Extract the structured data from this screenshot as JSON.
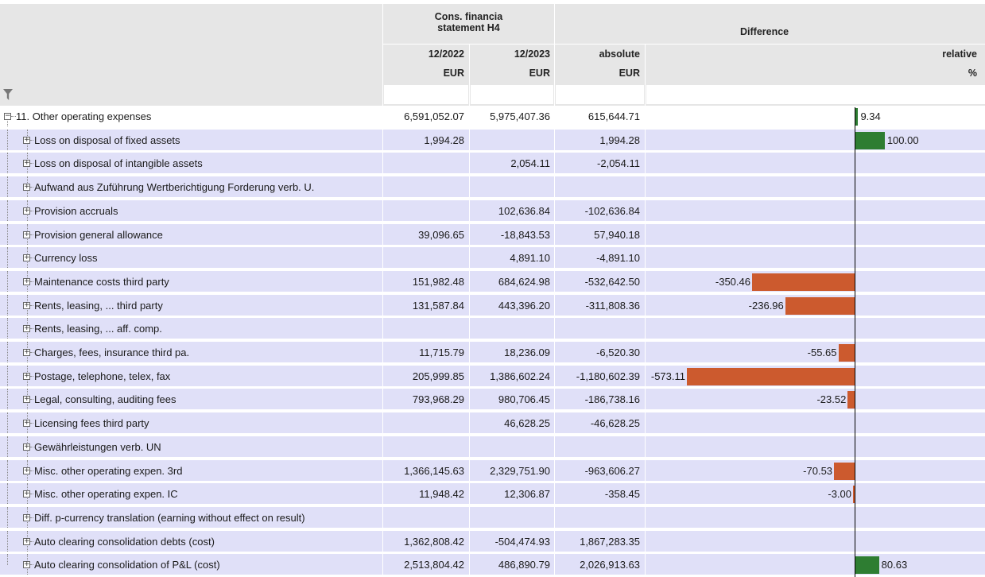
{
  "header": {
    "group_title": "Cons. financia statement H4",
    "group_title_line1": "Cons. financia",
    "group_title_line2": "statement H4",
    "diff_title": "Difference",
    "col_2022": "12/2022",
    "col_2023": "12/2023",
    "col_absolute": "absolute",
    "col_relative": "relative",
    "unit_2022": "EUR",
    "unit_2023": "EUR",
    "unit_absolute": "EUR",
    "unit_relative": "%"
  },
  "filter_icon": "funnel-icon",
  "colors": {
    "positive": "#2e7d32",
    "negative": "#cc5a2e",
    "band": "#e0e0f8"
  },
  "rows": [
    {
      "label": "11. Other operating  expenses",
      "v2022": "6,591,052.07",
      "v2023": "5,975,407.36",
      "abs": "615,644.71",
      "rel": "9.34",
      "relv": 9.34,
      "level": 0,
      "expanded": true
    },
    {
      "label": "Loss on disposal of fixed assets",
      "v2022": "1,994.28",
      "v2023": "",
      "abs": "1,994.28",
      "rel": "100.00",
      "relv": 100.0,
      "level": 1
    },
    {
      "label": "Loss on disposal of intangible assets",
      "v2022": "",
      "v2023": "2,054.11",
      "abs": "-2,054.11",
      "rel": "",
      "relv": null,
      "level": 1
    },
    {
      "label": "Aufwand aus Zuführung Wertberichtigung Forderung verb. U.",
      "v2022": "",
      "v2023": "",
      "abs": "",
      "rel": "",
      "relv": null,
      "level": 1
    },
    {
      "label": "Provision accruals",
      "v2022": "",
      "v2023": "102,636.84",
      "abs": "-102,636.84",
      "rel": "",
      "relv": null,
      "level": 1
    },
    {
      "label": "Provision general allowance",
      "v2022": "39,096.65",
      "v2023": "-18,843.53",
      "abs": "57,940.18",
      "rel": "",
      "relv": null,
      "level": 1
    },
    {
      "label": "Currency loss",
      "v2022": "",
      "v2023": "4,891.10",
      "abs": "-4,891.10",
      "rel": "",
      "relv": null,
      "level": 1
    },
    {
      "label": "Maintenance costs third party",
      "v2022": "151,982.48",
      "v2023": "684,624.98",
      "abs": "-532,642.50",
      "rel": "-350.46",
      "relv": -350.46,
      "level": 1
    },
    {
      "label": "Rents, leasing, ... third party",
      "v2022": "131,587.84",
      "v2023": "443,396.20",
      "abs": "-311,808.36",
      "rel": "-236.96",
      "relv": -236.96,
      "level": 1
    },
    {
      "label": "Rents, leasing, ... aff. comp.",
      "v2022": "",
      "v2023": "",
      "abs": "",
      "rel": "",
      "relv": null,
      "level": 1
    },
    {
      "label": "Charges, fees, insurance third pa.",
      "v2022": "11,715.79",
      "v2023": "18,236.09",
      "abs": "-6,520.30",
      "rel": "-55.65",
      "relv": -55.65,
      "level": 1
    },
    {
      "label": "Postage, telephone, telex, fax",
      "v2022": "205,999.85",
      "v2023": "1,386,602.24",
      "abs": "-1,180,602.39",
      "rel": "-573.11",
      "relv": -573.11,
      "level": 1
    },
    {
      "label": "Legal, consulting, auditing fees",
      "v2022": "793,968.29",
      "v2023": "980,706.45",
      "abs": "-186,738.16",
      "rel": "-23.52",
      "relv": -23.52,
      "level": 1
    },
    {
      "label": "Licensing fees third party",
      "v2022": "",
      "v2023": "46,628.25",
      "abs": "-46,628.25",
      "rel": "",
      "relv": null,
      "level": 1
    },
    {
      "label": "Gewährleistungen verb. UN",
      "v2022": "",
      "v2023": "",
      "abs": "",
      "rel": "",
      "relv": null,
      "level": 1
    },
    {
      "label": "Misc. other operating expen. 3rd",
      "v2022": "1,366,145.63",
      "v2023": "2,329,751.90",
      "abs": "-963,606.27",
      "rel": "-70.53",
      "relv": -70.53,
      "level": 1
    },
    {
      "label": "Misc. other operating expen. IC",
      "v2022": "11,948.42",
      "v2023": "12,306.87",
      "abs": "-358.45",
      "rel": "-3.00",
      "relv": -3.0,
      "level": 1
    },
    {
      "label": "Diff. p-currency translation (earning without effect on result)",
      "v2022": "",
      "v2023": "",
      "abs": "",
      "rel": "",
      "relv": null,
      "level": 1
    },
    {
      "label": "Auto clearing consolidation debts (cost)",
      "v2022": "1,362,808.42",
      "v2023": "-504,474.93",
      "abs": "1,867,283.35",
      "rel": "",
      "relv": null,
      "level": 1
    },
    {
      "label": "Auto clearing consolidation of P&L (cost)",
      "v2022": "2,513,804.42",
      "v2023": "486,890.79",
      "abs": "2,026,913.63",
      "rel": "80.63",
      "relv": 80.63,
      "level": 1
    }
  ]
}
